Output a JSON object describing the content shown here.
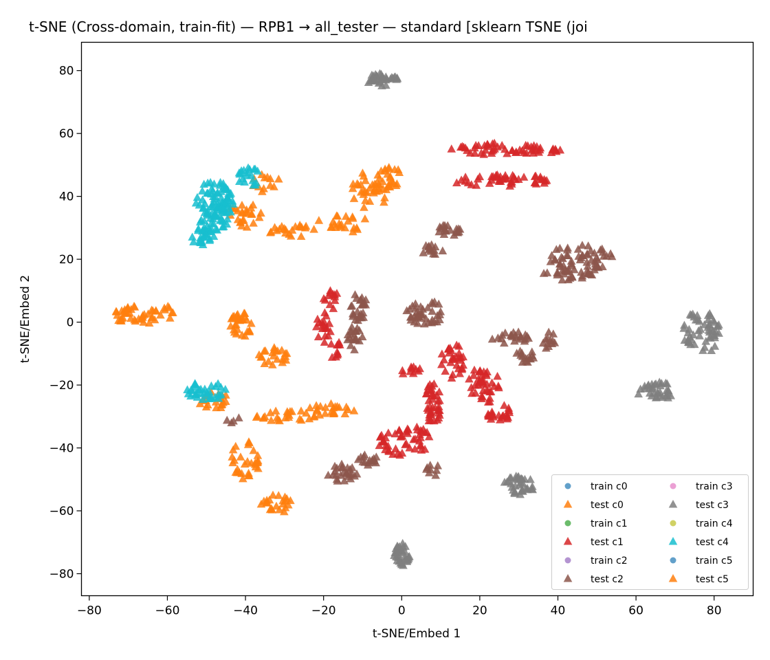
{
  "chart_data": {
    "type": "scatter",
    "title": "t-SNE (Cross-domain, train-fit) — RPB1 → all_tester — standard [sklearn TSNE (joi",
    "xlabel": "t-SNE/Embed 1",
    "ylabel": "t-SNE/Embed 2",
    "xlim": [
      -82,
      90
    ],
    "ylim": [
      -87,
      89
    ],
    "xticks": [
      -80,
      -60,
      -40,
      -20,
      0,
      20,
      40,
      60,
      80
    ],
    "yticks": [
      -80,
      -60,
      -40,
      -20,
      0,
      20,
      40,
      60,
      80
    ],
    "xtick_labels": [
      "−80",
      "−60",
      "−40",
      "−20",
      "0",
      "20",
      "40",
      "60",
      "80"
    ],
    "ytick_labels": [
      "−80",
      "−60",
      "−40",
      "−20",
      "0",
      "20",
      "40",
      "60",
      "80"
    ],
    "grid": false,
    "legend_position": "lower-right",
    "legend_columns": 2,
    "series": [
      {
        "name": "train c0",
        "marker": "circle",
        "color": "#1f77b4",
        "clusters": []
      },
      {
        "name": "test c0",
        "marker": "triangle",
        "color": "#ff7f0e",
        "clusters": [
          {
            "cx": -68,
            "cy": 2,
            "rx": 6,
            "ry": 3,
            "n": 40
          },
          {
            "cx": -60,
            "cy": 3,
            "rx": 2,
            "ry": 2,
            "n": 8
          },
          {
            "cx": -41,
            "cy": -1,
            "rx": 3,
            "ry": 4,
            "n": 30
          },
          {
            "cx": -33,
            "cy": -11,
            "rx": 4,
            "ry": 3,
            "n": 22
          },
          {
            "cx": -40,
            "cy": 34,
            "rx": 5,
            "ry": 4,
            "n": 25
          },
          {
            "cx": -35,
            "cy": 44,
            "rx": 4,
            "ry": 3,
            "n": 12
          },
          {
            "cx": -28,
            "cy": 29,
            "rx": 6,
            "ry": 2,
            "n": 20
          },
          {
            "cx": -15,
            "cy": 31,
            "rx": 7,
            "ry": 3,
            "n": 22
          },
          {
            "cx": -8,
            "cy": 42,
            "rx": 5,
            "ry": 6,
            "n": 35
          },
          {
            "cx": -3,
            "cy": 46,
            "rx": 3,
            "ry": 4,
            "n": 20
          },
          {
            "cx": -30,
            "cy": -30,
            "rx": 8,
            "ry": 2,
            "n": 25
          },
          {
            "cx": -18,
            "cy": -28,
            "rx": 6,
            "ry": 2,
            "n": 22
          },
          {
            "cx": -48,
            "cy": -25,
            "rx": 4,
            "ry": 3,
            "n": 20
          },
          {
            "cx": -40,
            "cy": -44,
            "rx": 4,
            "ry": 6,
            "n": 30
          },
          {
            "cx": -32,
            "cy": -58,
            "rx": 4,
            "ry": 3,
            "n": 22
          }
        ]
      },
      {
        "name": "train c1",
        "marker": "circle",
        "color": "#2ca02c",
        "clusters": []
      },
      {
        "name": "test c1",
        "marker": "triangle",
        "color": "#d62728",
        "clusters": [
          {
            "cx": 27,
            "cy": 55,
            "rx": 15,
            "ry": 2,
            "n": 55
          },
          {
            "cx": 25,
            "cy": 45,
            "rx": 13,
            "ry": 2,
            "n": 45
          },
          {
            "cx": -18,
            "cy": 7,
            "rx": 2,
            "ry": 3,
            "n": 12
          },
          {
            "cx": -20,
            "cy": -2,
            "rx": 2,
            "ry": 5,
            "n": 18
          },
          {
            "cx": -17,
            "cy": -9,
            "rx": 2,
            "ry": 3,
            "n": 10
          },
          {
            "cx": 3,
            "cy": -16,
            "rx": 3,
            "ry": 2,
            "n": 10
          },
          {
            "cx": 8,
            "cy": -26,
            "rx": 2,
            "ry": 7,
            "n": 40
          },
          {
            "cx": 13,
            "cy": -12,
            "rx": 3,
            "ry": 6,
            "n": 30
          },
          {
            "cx": 1,
            "cy": -38,
            "rx": 7,
            "ry": 5,
            "n": 50
          },
          {
            "cx": 21,
            "cy": -20,
            "rx": 4,
            "ry": 6,
            "n": 40
          },
          {
            "cx": 25,
            "cy": -29,
            "rx": 3,
            "ry": 3,
            "n": 22
          }
        ]
      },
      {
        "name": "train c2",
        "marker": "circle",
        "color": "#9467bd",
        "clusters": []
      },
      {
        "name": "test c2",
        "marker": "triangle",
        "color": "#8c564b",
        "clusters": [
          {
            "cx": 12,
            "cy": 29,
            "rx": 3,
            "ry": 2,
            "n": 18
          },
          {
            "cx": 8,
            "cy": 23,
            "rx": 3,
            "ry": 2,
            "n": 14
          },
          {
            "cx": 46,
            "cy": 20,
            "rx": 8,
            "ry": 5,
            "n": 55
          },
          {
            "cx": 43,
            "cy": 15,
            "rx": 7,
            "ry": 2,
            "n": 22
          },
          {
            "cx": -11,
            "cy": 5,
            "rx": 2,
            "ry": 5,
            "n": 25
          },
          {
            "cx": -12,
            "cy": -5,
            "rx": 2,
            "ry": 4,
            "n": 20
          },
          {
            "cx": 6,
            "cy": 3,
            "rx": 5,
            "ry": 4,
            "n": 40
          },
          {
            "cx": 28,
            "cy": -5,
            "rx": 5,
            "ry": 2,
            "n": 22
          },
          {
            "cx": 38,
            "cy": -6,
            "rx": 2,
            "ry": 3,
            "n": 12
          },
          {
            "cx": 32,
            "cy": -11,
            "rx": 3,
            "ry": 2,
            "n": 15
          },
          {
            "cx": -15,
            "cy": -48,
            "rx": 4,
            "ry": 3,
            "n": 25
          },
          {
            "cx": -9,
            "cy": -44,
            "rx": 3,
            "ry": 2,
            "n": 15
          },
          {
            "cx": 8,
            "cy": -47,
            "rx": 2,
            "ry": 2,
            "n": 8
          },
          {
            "cx": -43,
            "cy": -32,
            "rx": 2,
            "ry": 2,
            "n": 4
          }
        ]
      },
      {
        "name": "train c3",
        "marker": "circle",
        "color": "#e377c2",
        "clusters": []
      },
      {
        "name": "test c3",
        "marker": "triangle",
        "color": "#7f7f7f",
        "clusters": [
          {
            "cx": -5,
            "cy": 77,
            "rx": 4,
            "ry": 2,
            "n": 35
          },
          {
            "cx": 77,
            "cy": -3,
            "rx": 5,
            "ry": 7,
            "n": 55
          },
          {
            "cx": 65,
            "cy": -22,
            "rx": 5,
            "ry": 3,
            "n": 35
          },
          {
            "cx": 30,
            "cy": -52,
            "rx": 4,
            "ry": 3,
            "n": 35
          },
          {
            "cx": 0,
            "cy": -74,
            "rx": 2,
            "ry": 4,
            "n": 35
          }
        ]
      },
      {
        "name": "train c4",
        "marker": "circle",
        "color": "#bcbd22",
        "clusters": []
      },
      {
        "name": "test c4",
        "marker": "triangle",
        "color": "#17becf",
        "clusters": [
          {
            "cx": -48,
            "cy": 37,
            "rx": 5,
            "ry": 8,
            "n": 100
          },
          {
            "cx": -51,
            "cy": 27,
            "rx": 3,
            "ry": 3,
            "n": 25
          },
          {
            "cx": -39,
            "cy": 46,
            "rx": 3,
            "ry": 3,
            "n": 20
          },
          {
            "cx": -50,
            "cy": -22,
            "rx": 5,
            "ry": 3,
            "n": 35
          }
        ]
      },
      {
        "name": "train c5",
        "marker": "circle",
        "color": "#1f77b4",
        "clusters": []
      },
      {
        "name": "test c5",
        "marker": "triangle",
        "color": "#ff7f0e",
        "clusters": []
      }
    ]
  }
}
